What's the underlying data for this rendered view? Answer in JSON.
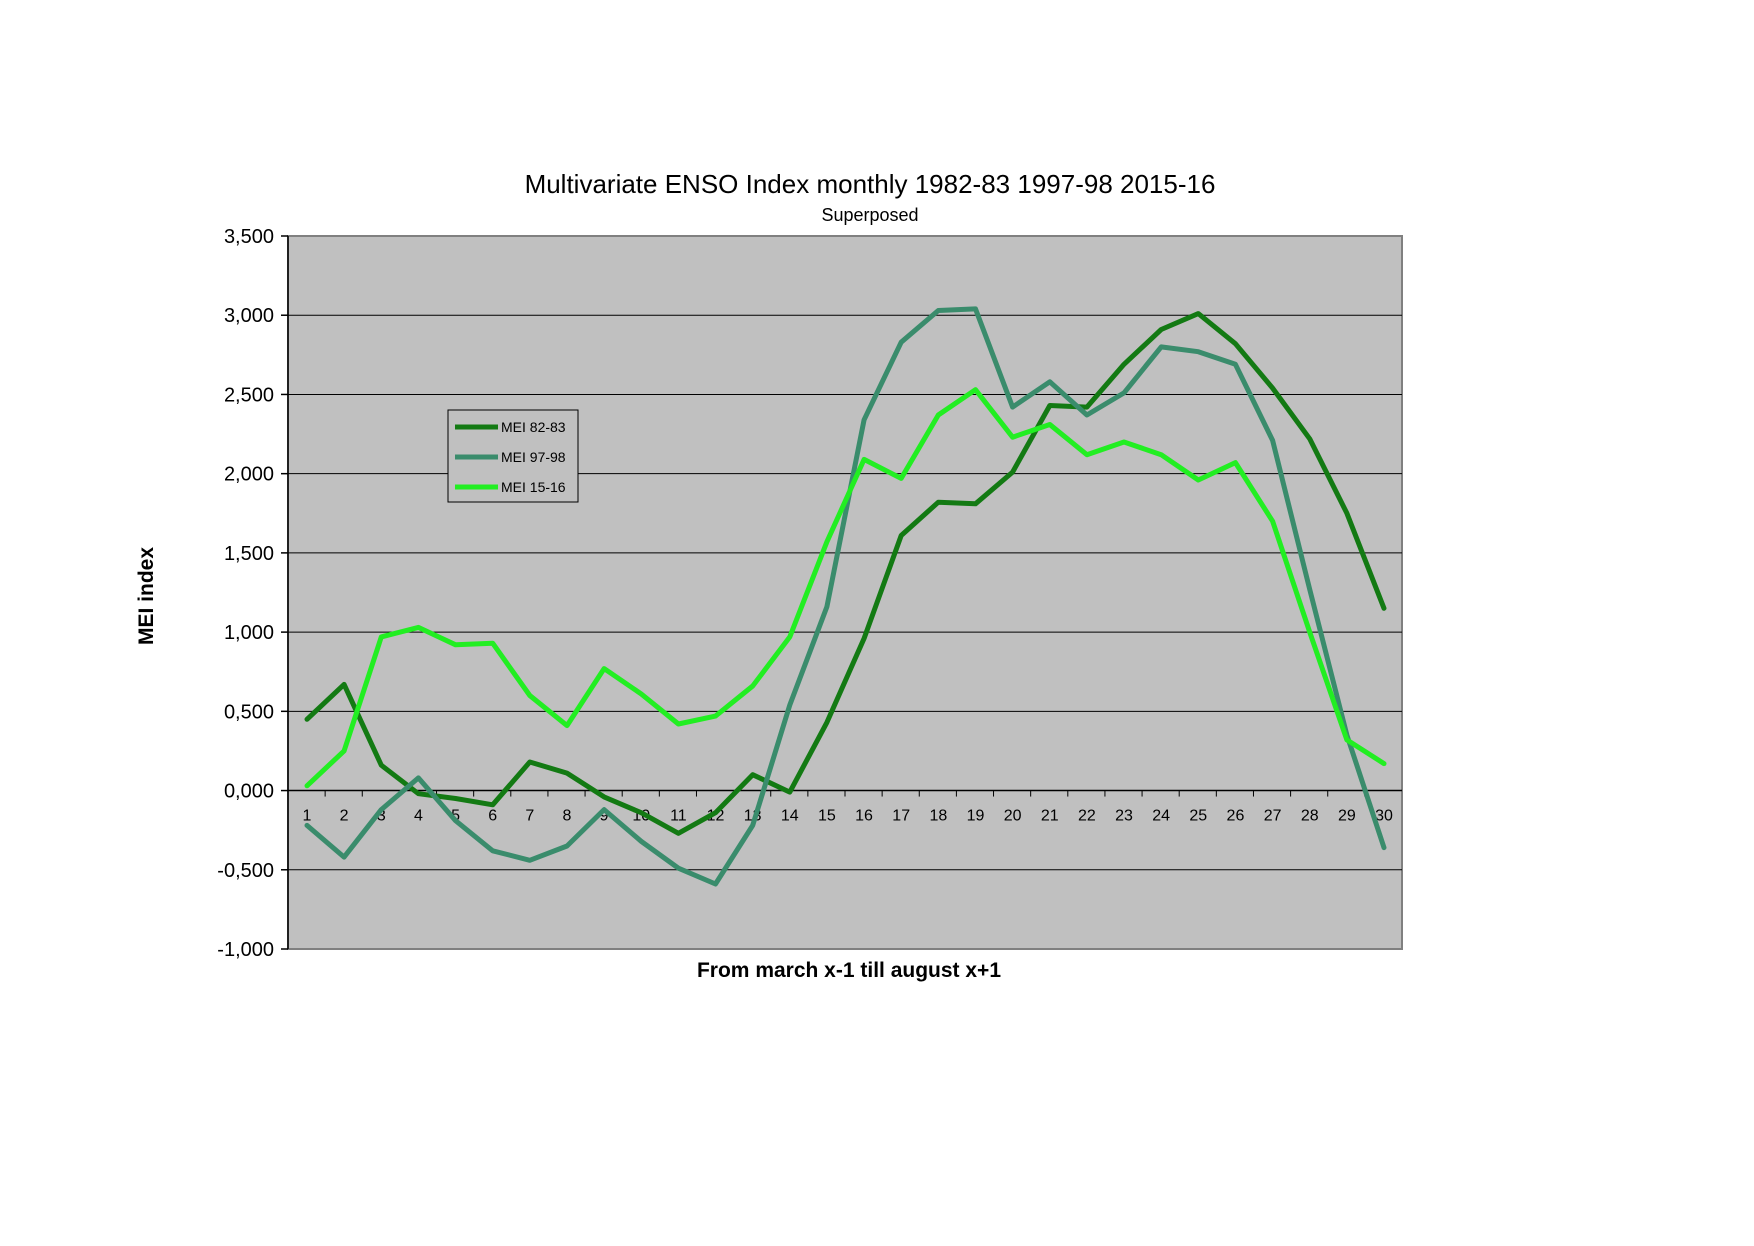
{
  "chart_data": {
    "type": "line",
    "title": "Multivariate ENSO Index monthly 1982-83 1997-98 2015-16",
    "subtitle": "Superposed",
    "xlabel": "From march x-1 till august x+1",
    "ylabel": "MEI index",
    "ylim": [
      -1.0,
      3.5
    ],
    "y_ticks": [
      "-1,000",
      "-0,500",
      "0,000",
      "0,500",
      "1,000",
      "1,500",
      "2,000",
      "2,500",
      "3,000",
      "3,500"
    ],
    "y_tick_values": [
      -1.0,
      -0.5,
      0.0,
      0.5,
      1.0,
      1.5,
      2.0,
      2.5,
      3.0,
      3.5
    ],
    "x": [
      "1",
      "2",
      "3",
      "4",
      "5",
      "6",
      "7",
      "8",
      "9",
      "10",
      "11",
      "12",
      "13",
      "14",
      "15",
      "16",
      "17",
      "18",
      "19",
      "20",
      "21",
      "22",
      "23",
      "24",
      "25",
      "26",
      "27",
      "28",
      "29",
      "30"
    ],
    "grid": true,
    "legend_position": "upper-left inside plot",
    "plot_background": "#c0c0c0",
    "series": [
      {
        "name": "MEI 82-83",
        "color": "#137a13",
        "values": [
          0.45,
          0.67,
          0.16,
          -0.02,
          -0.05,
          -0.09,
          0.18,
          0.11,
          -0.04,
          -0.14,
          -0.27,
          -0.14,
          0.1,
          -0.01,
          0.43,
          0.96,
          1.61,
          1.82,
          1.81,
          2.01,
          2.43,
          2.42,
          2.69,
          2.91,
          3.01,
          2.82,
          2.54,
          2.22,
          1.75,
          1.15
        ]
      },
      {
        "name": "MEI 97-98",
        "color": "#3a8c6c",
        "values": [
          -0.22,
          -0.42,
          -0.12,
          0.08,
          -0.19,
          -0.38,
          -0.44,
          -0.35,
          -0.12,
          -0.32,
          -0.49,
          -0.59,
          -0.22,
          0.54,
          1.16,
          2.34,
          2.83,
          3.03,
          3.04,
          2.42,
          2.58,
          2.37,
          2.51,
          2.8,
          2.77,
          2.69,
          2.21,
          1.27,
          0.35,
          -0.36
        ]
      },
      {
        "name": "MEI 15-16",
        "color": "#22ee22",
        "values": [
          0.03,
          0.25,
          0.97,
          1.03,
          0.92,
          0.93,
          0.6,
          0.41,
          0.77,
          0.61,
          0.42,
          0.47,
          0.66,
          0.97,
          1.57,
          2.09,
          1.97,
          2.37,
          2.53,
          2.23,
          2.31,
          2.12,
          2.2,
          2.12,
          1.96,
          2.07,
          1.7,
          1.0,
          0.32,
          0.17
        ]
      }
    ]
  }
}
